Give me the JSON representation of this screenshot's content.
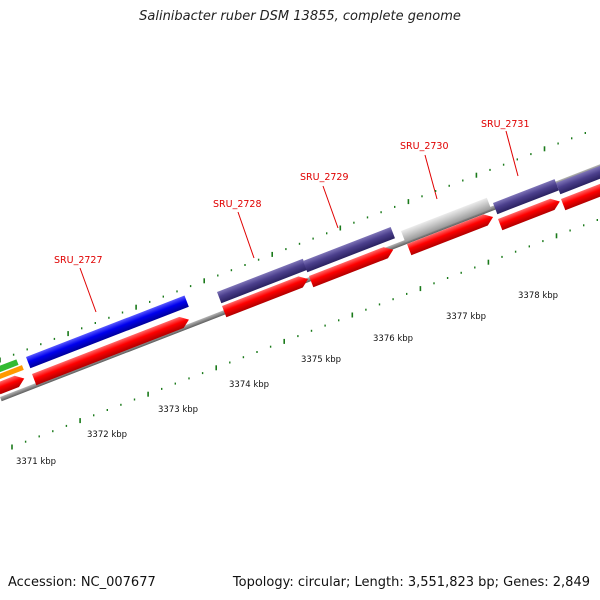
{
  "title": "Salinibacter ruber DSM 13855, complete genome",
  "accession": "Accession: NC_007677",
  "topology": "Topology: circular; Length: 3,551,823 bp; Genes: 2,849",
  "colors": {
    "backbone": "#8a8a8a",
    "cds": "#ff0000",
    "gene_purple": "#4b3f8c",
    "gene_blue": "#0000ee",
    "gene_grey": "#c8c8c8",
    "gene_green": "#33bb33",
    "gene_orange": "#ff9900",
    "tick": "#1a7a1a",
    "label": "#e00000"
  },
  "kbp_ticks": [
    {
      "label": "3371 kbp"
    },
    {
      "label": "3372 kbp"
    },
    {
      "label": "3373 kbp"
    },
    {
      "label": "3374 kbp"
    },
    {
      "label": "3375 kbp"
    },
    {
      "label": "3376 kbp"
    },
    {
      "label": "3377 kbp"
    },
    {
      "label": "3378 kbp"
    }
  ],
  "genes": [
    {
      "name": "SRU_2727",
      "color": "blue"
    },
    {
      "name": "SRU_2728",
      "color": "purple"
    },
    {
      "name": "SRU_2729",
      "color": "purple"
    },
    {
      "name": "SRU_2730",
      "color": "grey"
    },
    {
      "name": "SRU_2731",
      "color": "purple"
    }
  ]
}
